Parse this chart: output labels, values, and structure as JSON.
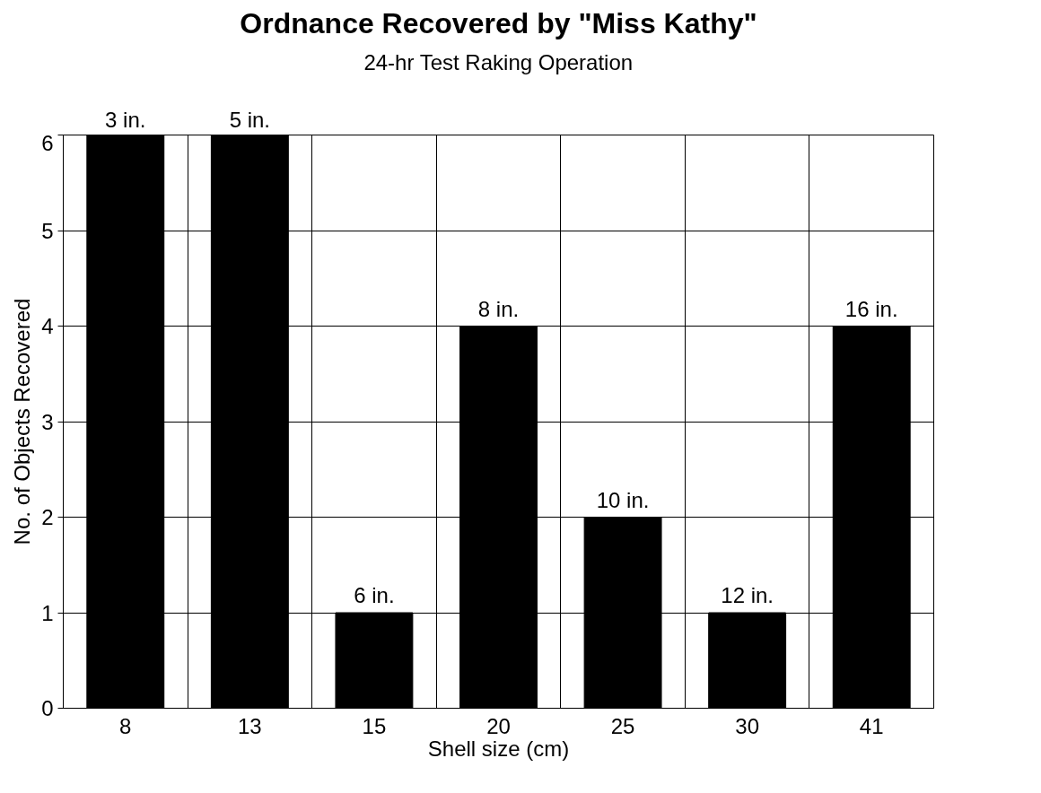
{
  "chart_data": {
    "type": "bar",
    "title": "Ordnance Recovered by \"Miss Kathy\"",
    "subtitle": "24-hr Test Raking Operation",
    "xlabel": "Shell size (cm)",
    "ylabel": "No. of Objects Recovered",
    "categories": [
      "8",
      "13",
      "15",
      "20",
      "25",
      "30",
      "41"
    ],
    "values": [
      6,
      6,
      1,
      4,
      2,
      1,
      4
    ],
    "annotations": [
      {
        "text": "3 in.",
        "x": "8",
        "y": 6
      },
      {
        "text": "5 in.",
        "x": "13",
        "y": 6
      },
      {
        "text": "6 in.",
        "x": "15",
        "y": 1
      },
      {
        "text": "8 in.",
        "x": "20",
        "y": 4
      },
      {
        "text": "10 in.",
        "x": "25",
        "y": 2
      },
      {
        "text": "12 in.",
        "x": "30",
        "y": 1
      },
      {
        "text": "16 in.",
        "x": "41",
        "y": 4
      }
    ],
    "color": "#000000",
    "ylim": [
      0,
      6
    ],
    "yticks": [
      0,
      1,
      2,
      3,
      4,
      5,
      6
    ],
    "grid": true
  }
}
